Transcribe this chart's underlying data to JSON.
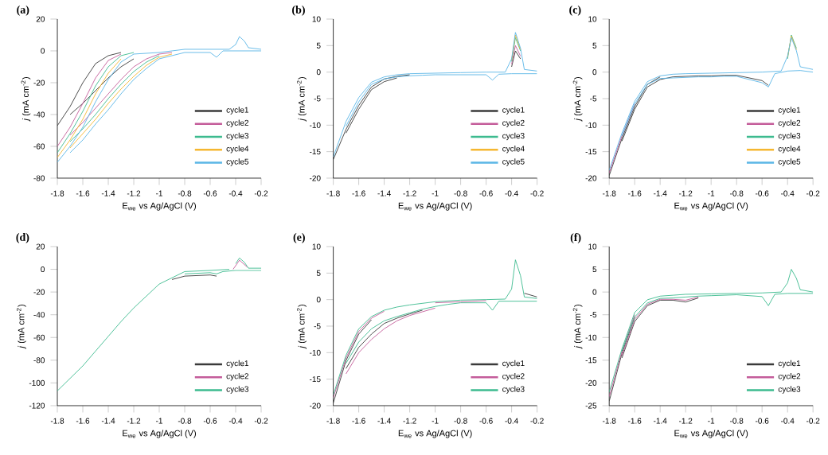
{
  "chart_data": [
    {
      "type": "line",
      "title": "(a)",
      "xlabel": "E$_{we}$ vs Ag/AgCl (V)",
      "ylabel": "*j* (mA cm$^{-2}$)",
      "legend": "bottom right",
      "x": [
        -0.2,
        -0.3,
        -0.4,
        -0.5,
        -0.55,
        -0.6,
        -0.8,
        -0.9,
        -1.0,
        -1.1,
        -1.2,
        -1.3,
        -1.4,
        -1.5,
        -1.6,
        -1.7
      ],
      "xlim": [
        -1.8,
        -0.2
      ],
      "xticks": [
        -1.8,
        -1.6,
        -1.4,
        -1.2,
        -1,
        -0.8,
        -0.6,
        -0.4,
        -0.2
      ],
      "ylim": [
        -80,
        20
      ],
      "yticks": [
        -80,
        -60,
        -40,
        -20,
        0,
        20
      ],
      "series": [
        {
          "color": "#3a3a3a",
          "x": [
            -1.2,
            -1.3,
            -1.4,
            -1.5,
            -1.6,
            -1.7
          ],
          "values": [
            -5,
            -10,
            -17,
            -25,
            -33,
            -40
          ]
        },
        {
          "name": "cycle1",
          "color": "#3a3a3a",
          "x": [
            -1.8,
            -1.7,
            -1.6,
            -1.5,
            -1.4,
            -1.3
          ],
          "values": [
            -47,
            -35,
            -20,
            -8,
            -3,
            -1
          ]
        },
        {
          "color": "#c45c9a",
          "x": [
            -0.9,
            -1.0,
            -1.1,
            -1.2,
            -1.3,
            -1.4,
            -1.5,
            -1.6,
            -1.7
          ],
          "values": [
            -1,
            -2,
            -5,
            -10,
            -18,
            -27,
            -36,
            -45,
            -53
          ]
        },
        {
          "name": "cycle2",
          "color": "#c45c9a",
          "x": [
            -1.8,
            -1.7,
            -1.6,
            -1.5,
            -1.4,
            -1.3
          ],
          "values": [
            -60,
            -48,
            -33,
            -17,
            -6,
            -2
          ]
        },
        {
          "color": "#3dbb8f",
          "x": [
            -1.0,
            -1.1,
            -1.2,
            -1.3,
            -1.4,
            -1.5,
            -1.6,
            -1.7
          ],
          "values": [
            -3,
            -7,
            -13,
            -21,
            -30,
            -40,
            -49,
            -57
          ]
        },
        {
          "name": "cycle3",
          "color": "#3dbb8f",
          "x": [
            -1.8,
            -1.7,
            -1.6,
            -1.5,
            -1.4,
            -1.3,
            -1.2
          ],
          "values": [
            -64,
            -52,
            -38,
            -22,
            -10,
            -3,
            -1
          ]
        },
        {
          "color": "#f5b731",
          "x": [
            -0.9,
            -1.0,
            -1.1,
            -1.2,
            -1.3,
            -1.4,
            -1.5,
            -1.6,
            -1.7
          ],
          "values": [
            -2,
            -4,
            -9,
            -16,
            -24,
            -33,
            -43,
            -52,
            -61
          ]
        },
        {
          "name": "cycle4",
          "color": "#f5b731",
          "x": [
            -1.8,
            -1.7,
            -1.6,
            -1.5,
            -1.4,
            -1.3
          ],
          "values": [
            -67,
            -56,
            -43,
            -27,
            -14,
            -5
          ]
        },
        {
          "color": "#5ab6e6",
          "values": [
            0,
            0,
            0,
            0,
            -4,
            -1,
            -1,
            -3,
            -5,
            -11,
            -18,
            -27,
            -37,
            -46,
            -56,
            -64
          ]
        },
        {
          "name": "cycle5",
          "color": "#5ab6e6",
          "x": [
            -1.8,
            -1.7,
            -1.6,
            -1.5,
            -1.4,
            -1.3,
            -1.2,
            -1.0,
            -0.8,
            -0.6,
            -0.45,
            -0.4,
            -0.37,
            -0.33,
            -0.3,
            -0.2
          ],
          "values": [
            -70,
            -60,
            -48,
            -32,
            -18,
            -7,
            -2,
            -1,
            1,
            1,
            1,
            4,
            9,
            6,
            2,
            1
          ]
        }
      ]
    },
    {
      "type": "line",
      "title": "(b)",
      "xlabel": "E$_{we}$ vs Ag/AgCl (V)",
      "ylabel": "*j* (mA cm$^{-2}$)",
      "legend": "bottom right",
      "x": [
        -0.2,
        -0.3,
        -0.4,
        -0.5,
        -0.55,
        -0.6,
        -0.8,
        -0.9,
        -1.0,
        -1.1,
        -1.2,
        -1.3,
        -1.4,
        -1.5,
        -1.6,
        -1.7
      ],
      "xlim": [
        -1.8,
        -0.2
      ],
      "xticks": [
        -1.8,
        -1.6,
        -1.4,
        -1.2,
        -1,
        -0.8,
        -0.6,
        -0.4,
        -0.2
      ],
      "ylim": [
        -20,
        10
      ],
      "yticks": [
        -20,
        -15,
        -10,
        -5,
        0,
        5,
        10
      ],
      "series": [
        {
          "color": "#3a3a3a",
          "x": [
            -1.3,
            -1.4,
            -1.5,
            -1.6,
            -1.7
          ],
          "values": [
            -1.1,
            -1.8,
            -3.3,
            -7,
            -11.5
          ]
        },
        {
          "name": "cycle1",
          "color": "#3a3a3a",
          "x": [
            -1.8,
            -1.7,
            -1.6,
            -1.5,
            -1.4,
            -1.3,
            -1.2
          ],
          "values": [
            -16.5,
            -10.8,
            -6.3,
            -2.8,
            -1.3,
            -0.8,
            -0.5
          ]
        },
        {
          "color": "#3a3a3a",
          "x": [
            -0.4,
            -0.37,
            -0.33
          ],
          "values": [
            1,
            4,
            2.5
          ]
        },
        {
          "name": "cycle2",
          "color": "#c45c9a",
          "x": [
            -0.4,
            -0.37,
            -0.33
          ],
          "values": [
            1.5,
            5,
            3
          ]
        },
        {
          "name": "cycle3",
          "color": "#3dbb8f",
          "x": [
            -0.4,
            -0.37,
            -0.33
          ],
          "values": [
            2,
            6.5,
            4
          ]
        },
        {
          "name": "cycle4",
          "color": "#f5b731",
          "x": [
            -0.4,
            -0.37,
            -0.33
          ],
          "values": [
            2.2,
            7,
            4.2
          ]
        },
        {
          "color": "#5ab6e6",
          "values": [
            -0.3,
            -0.3,
            -0.3,
            -0.4,
            -1.5,
            -0.5,
            -0.5,
            -0.5,
            -0.5,
            -0.6,
            -0.7,
            -0.9,
            -1.3,
            -2.3,
            -5.6,
            -10.2
          ]
        },
        {
          "name": "cycle5",
          "color": "#5ab6e6",
          "x": [
            -1.8,
            -1.7,
            -1.6,
            -1.5,
            -1.4,
            -1.3,
            -1.2,
            -1.0,
            -0.8,
            -0.6,
            -0.45,
            -0.4,
            -0.37,
            -0.33,
            -0.3,
            -0.2
          ],
          "values": [
            -16,
            -9.3,
            -4.8,
            -1.9,
            -0.9,
            -0.5,
            -0.3,
            -0.2,
            -0.1,
            0,
            0,
            2.5,
            7.5,
            4.5,
            0.5,
            0.2
          ]
        }
      ]
    },
    {
      "type": "line",
      "title": "(c)",
      "xlabel": "E$_{we}$ vs Ag/AgCl (V)",
      "ylabel": "*j* (mA cm$^{-2}$)",
      "legend": "bottom right",
      "x": [
        -0.2,
        -0.3,
        -0.4,
        -0.5,
        -0.55,
        -0.6,
        -0.8,
        -0.9,
        -1.0,
        -1.1,
        -1.2,
        -1.3,
        -1.4,
        -1.5,
        -1.6,
        -1.7
      ],
      "xlim": [
        -1.8,
        -0.2
      ],
      "xticks": [
        -1.8,
        -1.6,
        -1.4,
        -1.2,
        -1,
        -0.8,
        -0.6,
        -0.4,
        -0.2
      ],
      "ylim": [
        -20,
        10
      ],
      "yticks": [
        -20,
        -15,
        -10,
        -5,
        0,
        5,
        10
      ],
      "series": [
        {
          "color": "#3a3a3a",
          "x": [
            -0.55,
            -0.6,
            -0.8,
            -0.9,
            -1.0,
            -1.1,
            -1.2,
            -1.3,
            -1.4,
            -1.5,
            -1.6,
            -1.7
          ],
          "values": [
            -2.5,
            -1.6,
            -0.6,
            -0.6,
            -0.7,
            -0.7,
            -0.8,
            -0.9,
            -1.4,
            -2.8,
            -7,
            -13
          ]
        },
        {
          "name": "cycle1",
          "color": "#3a3a3a",
          "x": [
            -1.8,
            -1.7,
            -1.6,
            -1.5,
            -1.4
          ],
          "values": [
            -19.5,
            -12.5,
            -6.5,
            -2.3,
            -0.9
          ]
        },
        {
          "name": "cycle2",
          "color": "#c45c9a",
          "x": [
            -1.8,
            -1.7,
            -1.6
          ],
          "values": [
            -19,
            -12,
            -6
          ]
        },
        {
          "name": "cycle3",
          "color": "#3dbb8f",
          "x": [
            -0.4,
            -0.37,
            -0.33
          ],
          "values": [
            2.5,
            7,
            4.5
          ]
        },
        {
          "name": "cycle4",
          "color": "#f5b731",
          "x": [
            -0.4,
            -0.37,
            -0.33
          ],
          "values": [
            2.8,
            6.8,
            4.2
          ]
        },
        {
          "color": "#5ab6e6",
          "values": [
            0,
            0.3,
            0.2,
            -0.3,
            -2.8,
            -2,
            -0.8,
            -0.8,
            -0.9,
            -0.9,
            -1,
            -1.1,
            -1.2,
            -2.3,
            -6,
            -12
          ]
        },
        {
          "name": "cycle5",
          "color": "#5ab6e6",
          "x": [
            -1.8,
            -1.7,
            -1.6,
            -1.5,
            -1.4,
            -1.3,
            -1.2,
            -1.0,
            -0.8,
            -0.6,
            -0.45,
            -0.4,
            -0.37,
            -0.33,
            -0.3,
            -0.2
          ],
          "values": [
            -18.5,
            -11.5,
            -5.5,
            -1.8,
            -0.7,
            -0.4,
            -0.3,
            -0.2,
            -0.1,
            0,
            0.2,
            3,
            6.5,
            4,
            1,
            0.5
          ]
        }
      ]
    },
    {
      "type": "line",
      "title": "(d)",
      "xlabel": "E$_{we}$ vs Ag/AgCl (V)",
      "ylabel": "*j* (mA cm$^{-2}$)",
      "legend": "bottom right",
      "x": [
        -0.2,
        -0.3,
        -0.4,
        -0.5,
        -0.55,
        -0.6,
        -0.8
      ],
      "xlim": [
        -1.8,
        -0.2
      ],
      "xticks": [
        -1.8,
        -1.6,
        -1.4,
        -1.2,
        -1,
        -0.8,
        -0.6,
        -0.4,
        -0.2
      ],
      "ylim": [
        -120,
        20
      ],
      "yticks": [
        -120,
        -100,
        -80,
        -60,
        -40,
        -20,
        0,
        20
      ],
      "series": [
        {
          "name": "cycle1",
          "color": "#3a3a3a",
          "x": [
            -0.55,
            -0.6,
            -0.8,
            -0.9
          ],
          "values": [
            -6,
            -5,
            -6,
            -9
          ]
        },
        {
          "color": "#3dbb8f",
          "values": [
            -1,
            -1,
            -1,
            -2,
            -4,
            -3,
            -4
          ]
        },
        {
          "color": "#3dbb8f",
          "x": [
            -0.4,
            -0.37,
            -0.33,
            -0.3,
            -0.2
          ],
          "values": [
            5,
            10,
            6,
            1,
            1
          ]
        },
        {
          "name": "cycle2",
          "color": "#c45c9a",
          "x": [
            -0.42,
            -0.37,
            -0.31
          ],
          "values": [
            0,
            8,
            2
          ]
        },
        {
          "name": "cycle3",
          "color": "#3dbb8f",
          "x": [
            -1.8,
            -1.7,
            -1.6,
            -1.5,
            -1.4,
            -1.3,
            -1.2,
            -1.0,
            -0.8,
            -0.6,
            -0.45
          ],
          "values": [
            -107,
            -96,
            -85,
            -72,
            -59,
            -46,
            -34,
            -13,
            -2,
            -1,
            0
          ]
        }
      ]
    },
    {
      "type": "line",
      "title": "(e)",
      "xlabel": "E$_{we}$ vs Ag/AgCl (V)",
      "ylabel": "*j* (mA cm$^{-2}$)",
      "legend": "bottom right",
      "x": [
        -0.2,
        -0.3,
        -0.4,
        -0.5,
        -0.55,
        -0.6,
        -0.8,
        -0.9,
        -1.0,
        -1.1,
        -1.2,
        -1.3,
        -1.4,
        -1.5,
        -1.6,
        -1.7
      ],
      "xlim": [
        -1.8,
        -0.2
      ],
      "xticks": [
        -1.8,
        -1.6,
        -1.4,
        -1.2,
        -1,
        -0.8,
        -0.6,
        -0.4,
        -0.2
      ],
      "ylim": [
        -20,
        10
      ],
      "yticks": [
        -20,
        -15,
        -10,
        -5,
        0,
        5,
        10
      ],
      "series": [
        {
          "color": "#3a3a3a",
          "x": [
            -1.1,
            -1.2,
            -1.3,
            -1.4,
            -1.5,
            -1.6,
            -1.7
          ],
          "values": [
            -2,
            -2.7,
            -3.5,
            -4.5,
            -6.5,
            -9,
            -13
          ]
        },
        {
          "name": "cycle1",
          "color": "#3a3a3a",
          "x": [
            -1.8,
            -1.7,
            -1.6,
            -1.5
          ],
          "values": [
            -19.5,
            -11.5,
            -6.5,
            -3.8
          ]
        },
        {
          "color": "#3a3a3a",
          "x": [
            -0.3,
            -0.2
          ],
          "values": [
            1.2,
            0.5
          ]
        },
        {
          "color": "#c45c9a",
          "x": [
            -1.0,
            -1.1,
            -1.2,
            -1.3,
            -1.4,
            -1.5,
            -1.6,
            -1.7
          ],
          "values": [
            -1.6,
            -2.3,
            -3,
            -4,
            -5.5,
            -7.5,
            -10,
            -14
          ]
        },
        {
          "name": "cycle2",
          "color": "#c45c9a",
          "x": [
            -1.8,
            -1.7,
            -1.6,
            -1.5,
            -1.4
          ],
          "values": [
            -18.5,
            -11,
            -6,
            -3.5,
            -2.2
          ]
        },
        {
          "color": "#c45c9a",
          "x": [
            -1.0,
            -0.8,
            -0.6
          ],
          "values": [
            -0.6,
            -0.4,
            -0.2
          ]
        },
        {
          "color": "#3dbb8f",
          "values": [
            -0.3,
            -0.3,
            -0.3,
            -0.3,
            -2,
            -0.6,
            -0.6,
            -0.9,
            -1.3,
            -1.8,
            -2.5,
            -3.2,
            -4,
            -5.5,
            -8,
            -12
          ]
        },
        {
          "name": "cycle3",
          "color": "#3dbb8f",
          "x": [
            -1.8,
            -1.7,
            -1.6,
            -1.5,
            -1.4,
            -1.3,
            -1.2,
            -1.0,
            -0.8,
            -0.6,
            -0.45,
            -0.4,
            -0.37,
            -0.33,
            -0.3,
            -0.2
          ],
          "values": [
            -18,
            -10.5,
            -5.5,
            -3.2,
            -2,
            -1.4,
            -1,
            -0.4,
            -0.1,
            0,
            0.1,
            2,
            7.5,
            4.5,
            0.5,
            0.2
          ]
        }
      ]
    },
    {
      "type": "line",
      "title": "(f)",
      "xlabel": "E$_{we}$ vs Ag/AgCl (V)",
      "ylabel": "*j* (mA cm$^{-2}$)",
      "legend": "bottom right",
      "x": [
        -0.2,
        -0.3,
        -0.4,
        -0.5,
        -0.55,
        -0.6,
        -0.8,
        -0.9,
        -1.0,
        -1.1,
        -1.2,
        -1.3,
        -1.4,
        -1.5,
        -1.6,
        -1.7
      ],
      "xlim": [
        -1.8,
        -0.2
      ],
      "xticks": [
        -1.8,
        -1.6,
        -1.4,
        -1.2,
        -1,
        -0.8,
        -0.6,
        -0.4,
        -0.2
      ],
      "ylim": [
        -25,
        10
      ],
      "yticks": [
        -25,
        -20,
        -15,
        -10,
        -5,
        0,
        5,
        10
      ],
      "series": [
        {
          "color": "#3a3a3a",
          "x": [
            -1.1,
            -1.2,
            -1.3,
            -1.4,
            -1.5,
            -1.6,
            -1.7
          ],
          "values": [
            -1.3,
            -2.2,
            -1.8,
            -1.8,
            -3,
            -6.5,
            -14.5
          ]
        },
        {
          "name": "cycle1",
          "color": "#3a3a3a",
          "x": [
            -1.8,
            -1.7,
            -1.6
          ],
          "values": [
            -24,
            -13.5,
            -5.5
          ]
        },
        {
          "color": "#c45c9a",
          "x": [
            -1.1,
            -1.2,
            -1.3,
            -1.4,
            -1.5,
            -1.6,
            -1.7
          ],
          "values": [
            -1.1,
            -1.8,
            -1.6,
            -1.6,
            -2.7,
            -6,
            -14
          ]
        },
        {
          "name": "cycle2",
          "color": "#c45c9a",
          "x": [
            -1.8,
            -1.7,
            -1.6
          ],
          "values": [
            -23,
            -13,
            -5
          ]
        },
        {
          "color": "#3dbb8f",
          "values": [
            -0.3,
            -0.3,
            -0.3,
            -0.5,
            -3,
            -1,
            -0.6,
            -0.7,
            -0.8,
            -0.9,
            -1.1,
            -1.3,
            -1.4,
            -2.4,
            -5.5,
            -13
          ]
        },
        {
          "name": "cycle3",
          "color": "#3dbb8f",
          "x": [
            -1.8,
            -1.7,
            -1.6,
            -1.5,
            -1.4,
            -1.3,
            -1.2,
            -1.0,
            -0.8,
            -0.6,
            -0.45,
            -0.4,
            -0.37,
            -0.33,
            -0.3,
            -0.2
          ],
          "values": [
            -22,
            -12.5,
            -4.5,
            -1.7,
            -0.9,
            -0.7,
            -0.5,
            -0.4,
            -0.3,
            -0.2,
            0,
            2,
            5,
            3,
            0.5,
            0
          ]
        }
      ]
    }
  ]
}
